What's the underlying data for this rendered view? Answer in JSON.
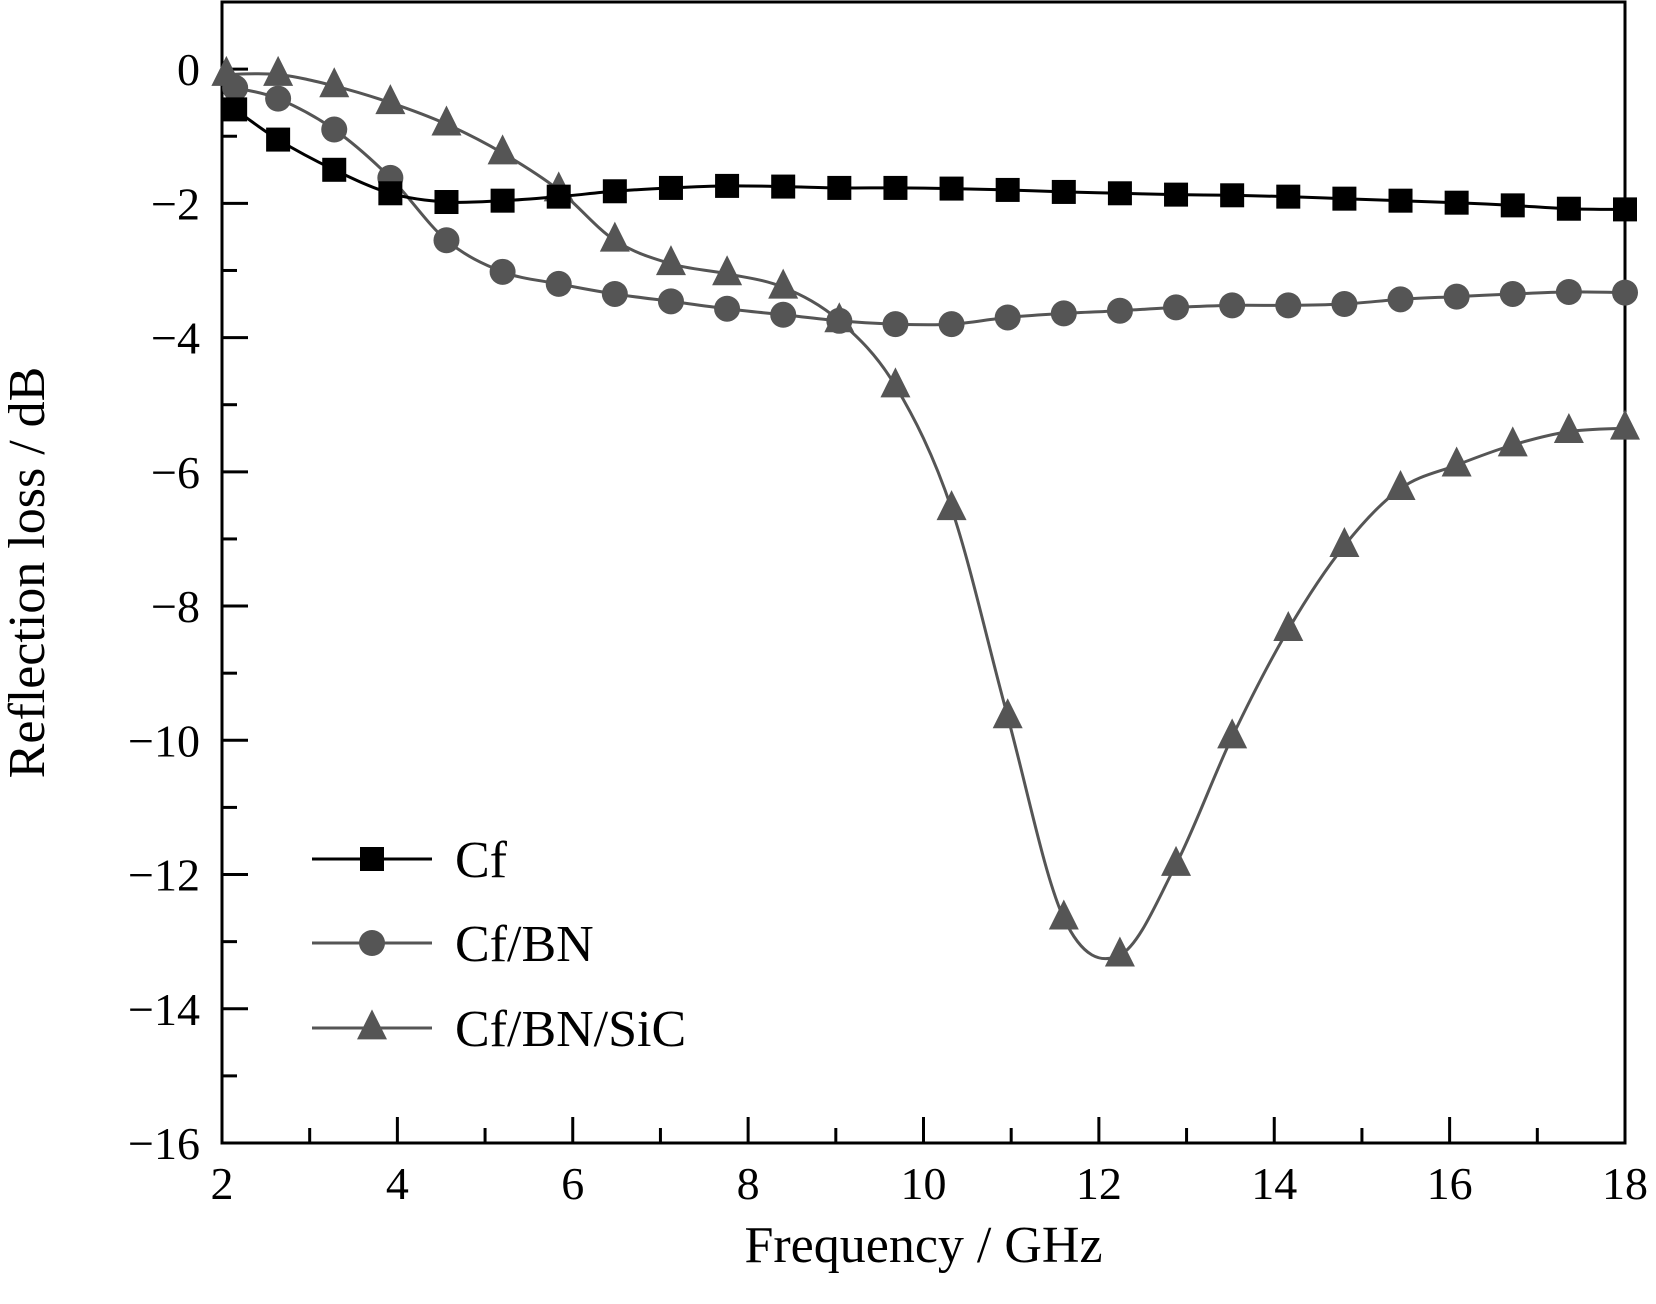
{
  "chart_data": {
    "type": "line",
    "title": "",
    "xlabel": "Frequency / GHz",
    "ylabel": "Reflection loss / dB",
    "xlim": [
      2,
      18
    ],
    "ylim": [
      -16,
      1
    ],
    "xticks": [
      2,
      4,
      6,
      8,
      10,
      12,
      14,
      16,
      18
    ],
    "xtick_labels": [
      "2",
      "4",
      "6",
      "8",
      "10",
      "12",
      "14",
      "16",
      "18"
    ],
    "yticks": [
      0,
      -2,
      -4,
      -6,
      -8,
      -10,
      -12,
      -14,
      -16
    ],
    "ytick_labels": [
      "0",
      "−2",
      "−4",
      "−6",
      "−8",
      "−10",
      "−12",
      "−14",
      "−16"
    ],
    "grid": false,
    "legend_position": "bottom-left",
    "series": [
      {
        "name": "Cf",
        "marker": "square",
        "color": "#000000",
        "x": [
          2.15,
          2.64,
          3.28,
          3.92,
          4.56,
          5.2,
          5.84,
          6.48,
          7.12,
          7.76,
          8.4,
          9.04,
          9.68,
          10.32,
          10.96,
          11.6,
          12.24,
          12.88,
          13.52,
          14.16,
          14.8,
          15.44,
          16.08,
          16.72,
          17.36,
          18.0
        ],
        "y": [
          -0.6,
          -1.05,
          -1.5,
          -1.85,
          -1.98,
          -1.96,
          -1.9,
          -1.82,
          -1.77,
          -1.74,
          -1.75,
          -1.77,
          -1.77,
          -1.78,
          -1.8,
          -1.83,
          -1.85,
          -1.87,
          -1.88,
          -1.9,
          -1.93,
          -1.96,
          -1.99,
          -2.03,
          -2.08,
          -2.09
        ]
      },
      {
        "name": "Cf/BN",
        "marker": "circle",
        "color": "#555555",
        "x": [
          2.15,
          2.64,
          3.28,
          3.92,
          4.56,
          5.2,
          5.84,
          6.48,
          7.12,
          7.76,
          8.4,
          9.04,
          9.68,
          10.32,
          10.96,
          11.6,
          12.24,
          12.88,
          13.52,
          14.16,
          14.8,
          15.44,
          16.08,
          16.72,
          17.36,
          18.0
        ],
        "y": [
          -0.28,
          -0.44,
          -0.9,
          -1.62,
          -2.55,
          -3.02,
          -3.2,
          -3.35,
          -3.46,
          -3.57,
          -3.66,
          -3.75,
          -3.8,
          -3.8,
          -3.7,
          -3.64,
          -3.6,
          -3.55,
          -3.52,
          -3.52,
          -3.5,
          -3.43,
          -3.39,
          -3.35,
          -3.32,
          -3.33
        ]
      },
      {
        "name": "Cf/BN/SiC",
        "marker": "triangle",
        "color": "#555555",
        "x": [
          2.05,
          2.64,
          3.28,
          3.92,
          4.56,
          5.2,
          5.84,
          6.48,
          7.12,
          7.76,
          8.4,
          9.04,
          9.68,
          10.32,
          10.96,
          11.6,
          12.24,
          12.88,
          13.52,
          14.16,
          14.8,
          15.44,
          16.08,
          16.72,
          17.36,
          18.0
        ],
        "y": [
          -0.08,
          -0.08,
          -0.25,
          -0.5,
          -0.82,
          -1.25,
          -1.8,
          -2.55,
          -2.9,
          -3.05,
          -3.25,
          -3.75,
          -4.72,
          -6.55,
          -9.65,
          -12.65,
          -13.2,
          -11.85,
          -9.95,
          -8.35,
          -7.1,
          -6.25,
          -5.9,
          -5.6,
          -5.4,
          -5.35
        ]
      }
    ]
  }
}
